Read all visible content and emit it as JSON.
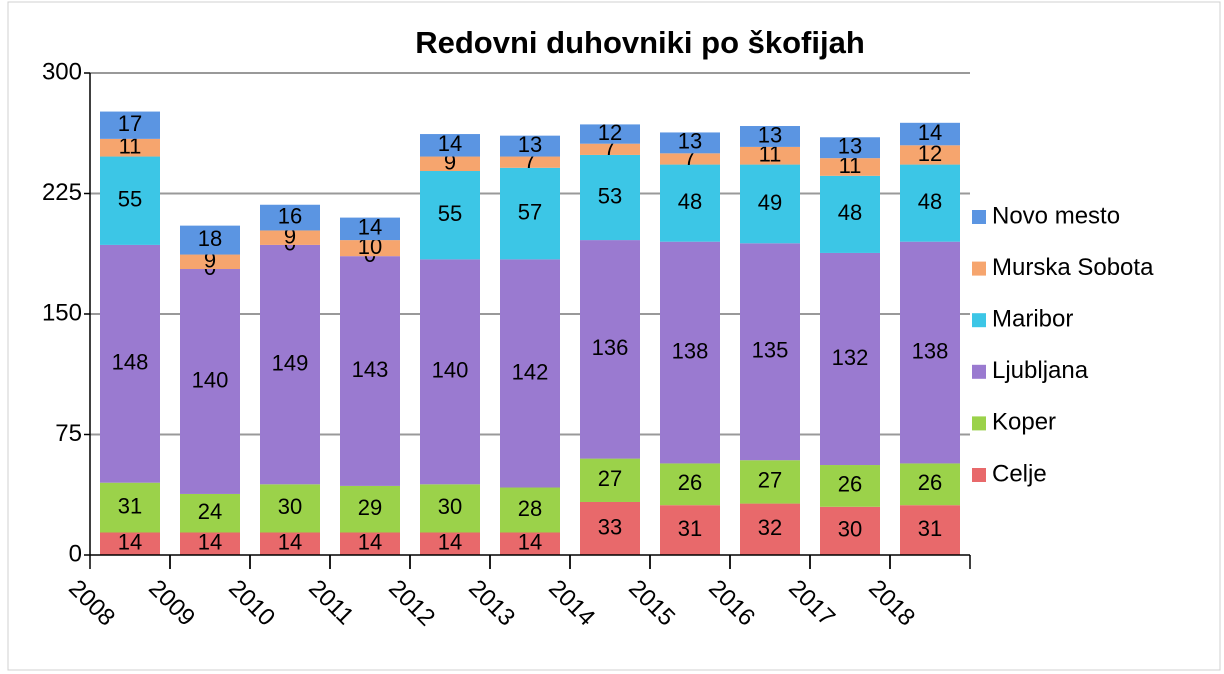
{
  "chart_data": {
    "type": "stacked_bar",
    "title": "Redovni duhovniki po škofijah",
    "categories": [
      "2008",
      "2009",
      "2010",
      "2011",
      "2012",
      "2013",
      "2014",
      "2015",
      "2016",
      "2017",
      "2018"
    ],
    "series": [
      {
        "name": "Celje",
        "color": "#e8696b",
        "values": [
          14,
          14,
          14,
          14,
          14,
          14,
          33,
          31,
          32,
          30,
          31
        ]
      },
      {
        "name": "Koper",
        "color": "#9bd24a",
        "values": [
          31,
          24,
          30,
          29,
          30,
          28,
          27,
          26,
          27,
          26,
          26
        ]
      },
      {
        "name": "Ljubljana",
        "color": "#9a7ad0",
        "values": [
          148,
          140,
          149,
          143,
          140,
          142,
          136,
          138,
          135,
          132,
          138
        ]
      },
      {
        "name": "Maribor",
        "color": "#3cc6e6",
        "values": [
          55,
          0,
          0,
          0,
          55,
          57,
          53,
          48,
          49,
          48,
          48
        ]
      },
      {
        "name": "Murska Sobota",
        "color": "#f6a56e",
        "values": [
          11,
          9,
          9,
          10,
          9,
          7,
          7,
          7,
          11,
          11,
          12
        ]
      },
      {
        "name": "Novo mesto",
        "color": "#5b95e2",
        "values": [
          17,
          18,
          16,
          14,
          14,
          13,
          12,
          13,
          13,
          13,
          14
        ]
      }
    ],
    "ylim": [
      0,
      300
    ],
    "yticks": [
      0,
      75,
      150,
      225,
      300
    ],
    "grid": true,
    "legend": "right"
  }
}
